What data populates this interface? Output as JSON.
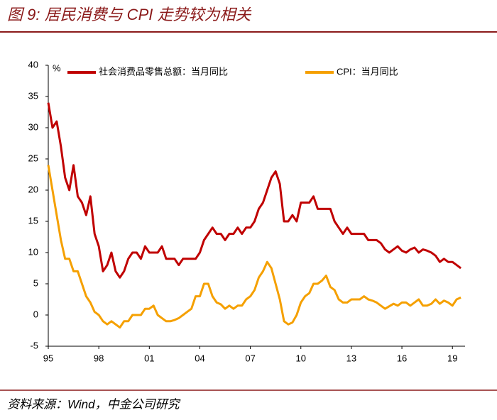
{
  "chart_data": {
    "type": "line",
    "title": "图 9: 居民消费与 CPI 走势较为相关",
    "source": "资料来源：Wind，中金公司研究",
    "y_unit": "%",
    "x": [
      1995,
      1995.25,
      1995.5,
      1995.75,
      1996,
      1996.25,
      1996.5,
      1996.75,
      1997,
      1997.25,
      1997.5,
      1997.75,
      1998,
      1998.25,
      1998.5,
      1998.75,
      1999,
      1999.25,
      1999.5,
      1999.75,
      2000,
      2000.25,
      2000.5,
      2000.75,
      2001,
      2001.25,
      2001.5,
      2001.75,
      2002,
      2002.25,
      2002.5,
      2002.75,
      2003,
      2003.25,
      2003.5,
      2003.75,
      2004,
      2004.25,
      2004.5,
      2004.75,
      2005,
      2005.25,
      2005.5,
      2005.75,
      2006,
      2006.25,
      2006.5,
      2006.75,
      2007,
      2007.25,
      2007.5,
      2007.75,
      2008,
      2008.25,
      2008.5,
      2008.75,
      2009,
      2009.25,
      2009.5,
      2009.75,
      2010,
      2010.25,
      2010.5,
      2010.75,
      2011,
      2011.25,
      2011.5,
      2011.75,
      2012,
      2012.25,
      2012.5,
      2012.75,
      2013,
      2013.25,
      2013.5,
      2013.75,
      2014,
      2014.25,
      2014.5,
      2014.75,
      2015,
      2015.25,
      2015.5,
      2015.75,
      2016,
      2016.25,
      2016.5,
      2016.75,
      2017,
      2017.25,
      2017.5,
      2017.75,
      2018,
      2018.25,
      2018.5,
      2018.75,
      2019,
      2019.25,
      2019.5
    ],
    "series": [
      {
        "name": "社会消费品零售总额：当月同比",
        "color": "#c00000",
        "values": [
          34,
          30,
          31,
          27,
          22,
          20,
          24,
          19,
          18,
          16,
          19,
          13,
          11,
          7,
          8,
          10,
          7,
          6,
          7,
          9,
          10,
          10,
          9,
          11,
          10,
          10,
          10,
          11,
          9,
          9,
          9,
          8,
          9,
          9,
          9,
          9,
          10,
          12,
          13,
          14,
          13,
          13,
          12,
          13,
          13,
          14,
          13,
          14,
          14,
          15,
          17,
          18,
          20,
          22,
          23,
          21,
          15,
          15,
          16,
          15,
          18,
          18,
          18,
          19,
          17,
          17,
          17,
          17,
          15,
          14,
          13,
          14,
          13,
          13,
          13,
          13,
          12,
          12,
          12,
          11.5,
          10.5,
          10,
          10.5,
          11,
          10.3,
          10,
          10.5,
          10.8,
          10,
          10.5,
          10.3,
          10,
          9.5,
          8.5,
          9,
          8.5,
          8.5,
          8,
          7.5
        ]
      },
      {
        "name": "CPI：当月同比",
        "color": "#f5a000",
        "values": [
          24,
          20,
          16,
          12,
          9,
          9,
          7,
          7,
          5,
          3,
          2,
          0.5,
          0,
          -1,
          -1.5,
          -1,
          -1.5,
          -2,
          -1,
          -1,
          0,
          0,
          0,
          1,
          1,
          1.5,
          0,
          -0.5,
          -1,
          -1,
          -0.8,
          -0.5,
          0,
          0.5,
          1,
          3,
          3,
          5,
          5,
          3,
          2,
          1.7,
          1,
          1.5,
          1,
          1.5,
          1.5,
          2.5,
          3,
          4,
          6,
          7,
          8.5,
          7.5,
          5,
          2.5,
          -1,
          -1.5,
          -1.2,
          0,
          2,
          3,
          3.5,
          5,
          5,
          5.5,
          6.3,
          4.5,
          4,
          2.5,
          2,
          2,
          2.5,
          2.5,
          2.5,
          3,
          2.5,
          2.3,
          2,
          1.5,
          1,
          1.4,
          1.8,
          1.5,
          2,
          2,
          1.5,
          2,
          2.5,
          1.5,
          1.5,
          1.8,
          2.5,
          1.8,
          2.3,
          2,
          1.5,
          2.5,
          2.8
        ]
      }
    ],
    "xlim": [
      1995,
      2019.75
    ],
    "xticks": [
      {
        "value": 1995,
        "label": "95"
      },
      {
        "value": 1998,
        "label": "98"
      },
      {
        "value": 2001,
        "label": "01"
      },
      {
        "value": 2004,
        "label": "04"
      },
      {
        "value": 2007,
        "label": "07"
      },
      {
        "value": 2010,
        "label": "10"
      },
      {
        "value": 2013,
        "label": "13"
      },
      {
        "value": 2016,
        "label": "16"
      },
      {
        "value": 2019,
        "label": "19"
      }
    ],
    "ylim": [
      -5,
      40
    ],
    "yticks": [
      -5,
      0,
      5,
      10,
      15,
      20,
      25,
      30,
      35,
      40
    ],
    "grid": false,
    "legend": "top"
  }
}
